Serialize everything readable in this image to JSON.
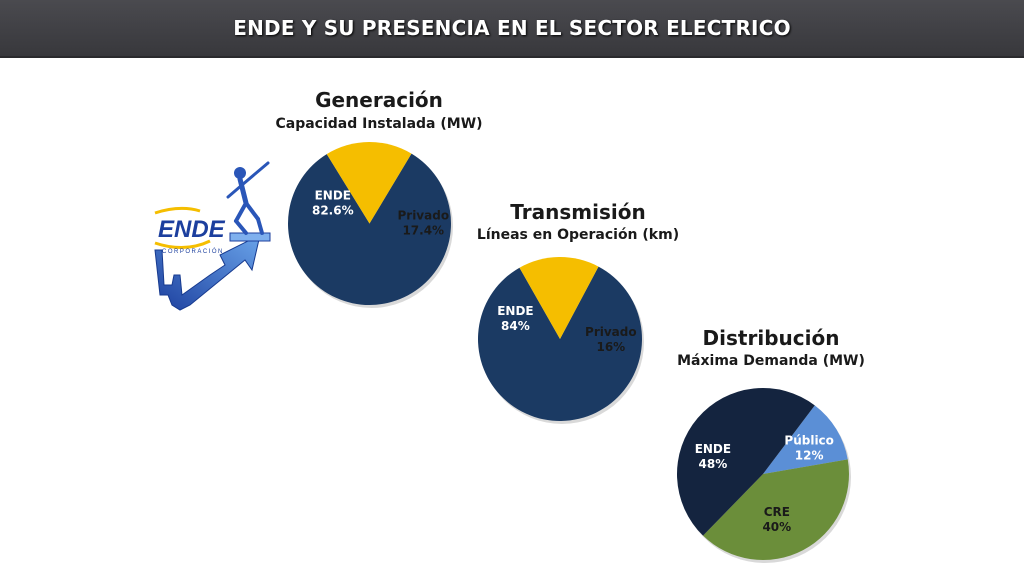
{
  "header": {
    "title": "ENDE Y SU PRESENCIA EN EL SECTOR ELECTRICO"
  },
  "logo": {
    "name": "ENDE",
    "tagline": "CORPORACIÓN"
  },
  "chart_data": [
    {
      "type": "pie",
      "title": "Generación",
      "subtitle": "Capacidad Instalada (MW)",
      "slices": [
        {
          "label": "ENDE",
          "value_label": "82.6%",
          "value": 82.6,
          "color": "#1b3a63",
          "text_color": "#ffffff"
        },
        {
          "label": "Privado",
          "value_label": "17.4%",
          "value": 17.4,
          "color": "#f5be00",
          "text_color": "#1a1a1a"
        }
      ]
    },
    {
      "type": "pie",
      "title": "Transmisión",
      "subtitle": "Líneas en Operación (km)",
      "slices": [
        {
          "label": "ENDE",
          "value_label": "84%",
          "value": 84,
          "color": "#1b3a63",
          "text_color": "#ffffff"
        },
        {
          "label": "Privado",
          "value_label": "16%",
          "value": 16,
          "color": "#f5be00",
          "text_color": "#1a1a1a"
        }
      ]
    },
    {
      "type": "pie",
      "title": "Distribución",
      "subtitle": "Máxima Demanda (MW)",
      "slices": [
        {
          "label": "Público",
          "value_label": "12%",
          "value": 12,
          "color": "#5b8fd6",
          "text_color": "#ffffff"
        },
        {
          "label": "CRE",
          "value_label": "40%",
          "value": 40,
          "color": "#6b8e3a",
          "text_color": "#1a1a1a"
        },
        {
          "label": "ENDE",
          "value_label": "48%",
          "value": 48,
          "color": "#14243f",
          "text_color": "#ffffff"
        }
      ]
    }
  ]
}
